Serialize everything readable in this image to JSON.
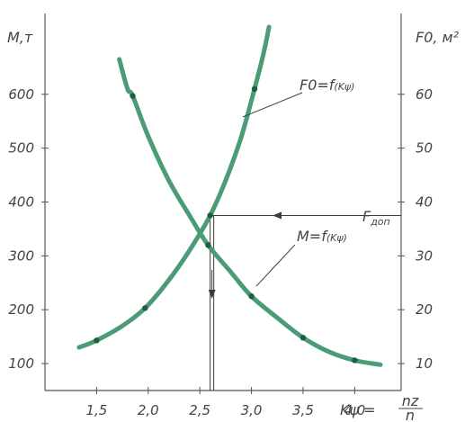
{
  "chart_data": {
    "type": "line",
    "left_axis_label": "M,т",
    "right_axis_label": "F0, м²",
    "x_axis_label": "Kψ = nz / n",
    "x_axis_label_main": "Kψ =",
    "x_axis_label_num": "nz",
    "x_axis_label_den": "n",
    "x_ticks": [
      1.5,
      2.0,
      2.5,
      3.0,
      3.5,
      4.0
    ],
    "x_tick_labels": [
      "1,5",
      "2,0",
      "2,5",
      "3,0",
      "3,5",
      "4,0"
    ],
    "x_range": [
      1.0,
      4.45
    ],
    "left_ticks": [
      100,
      200,
      300,
      400,
      500,
      600
    ],
    "left_range": [
      50,
      750
    ],
    "right_ticks": [
      10,
      20,
      30,
      40,
      50,
      60
    ],
    "right_range": [
      5,
      75
    ],
    "grid": false,
    "series": [
      {
        "name": "M=f(Kψ)",
        "label_main": "M=f",
        "label_sub": "(Kψ)",
        "axis": "left",
        "color": "#4a9b76",
        "curve": [
          [
            1.72,
            665
          ],
          [
            1.8,
            610
          ],
          [
            1.85,
            597
          ],
          [
            2.0,
            522
          ],
          [
            2.2,
            440
          ],
          [
            2.4,
            375
          ],
          [
            2.58,
            320
          ],
          [
            2.8,
            270
          ],
          [
            3.0,
            225
          ],
          [
            3.25,
            185
          ],
          [
            3.5,
            148
          ],
          [
            3.75,
            122
          ],
          [
            4.0,
            106
          ],
          [
            4.25,
            98
          ]
        ],
        "points": [
          [
            1.85,
            597
          ],
          [
            2.58,
            320
          ],
          [
            3.0,
            225
          ],
          [
            3.5,
            148
          ],
          [
            4.0,
            106
          ]
        ]
      },
      {
        "name": "F0=f(Kψ)",
        "label_main": "F0=f",
        "label_sub": "(Kψ)",
        "axis": "right",
        "color": "#4a9b76",
        "curve": [
          [
            1.33,
            13
          ],
          [
            1.5,
            14.3
          ],
          [
            1.75,
            17
          ],
          [
            1.97,
            20.3
          ],
          [
            2.2,
            25.5
          ],
          [
            2.4,
            31
          ],
          [
            2.6,
            37.5
          ],
          [
            2.75,
            44
          ],
          [
            2.9,
            52
          ],
          [
            3.03,
            61
          ],
          [
            3.12,
            67.8
          ],
          [
            3.17,
            72.5
          ]
        ],
        "points": [
          [
            1.5,
            14.3
          ],
          [
            1.97,
            20.3
          ],
          [
            2.6,
            37.5
          ],
          [
            3.03,
            61
          ]
        ]
      }
    ],
    "annotations": [
      {
        "text": "Fдоп",
        "text_main": "F",
        "text_sub": "доп",
        "axis": "right",
        "value": 37.5,
        "from_x": 4.45,
        "to_x": 2.6
      }
    ],
    "reference_lines": [
      {
        "type": "vertical",
        "x": 2.6,
        "from_value": 37.5,
        "to_value": 5
      }
    ]
  }
}
